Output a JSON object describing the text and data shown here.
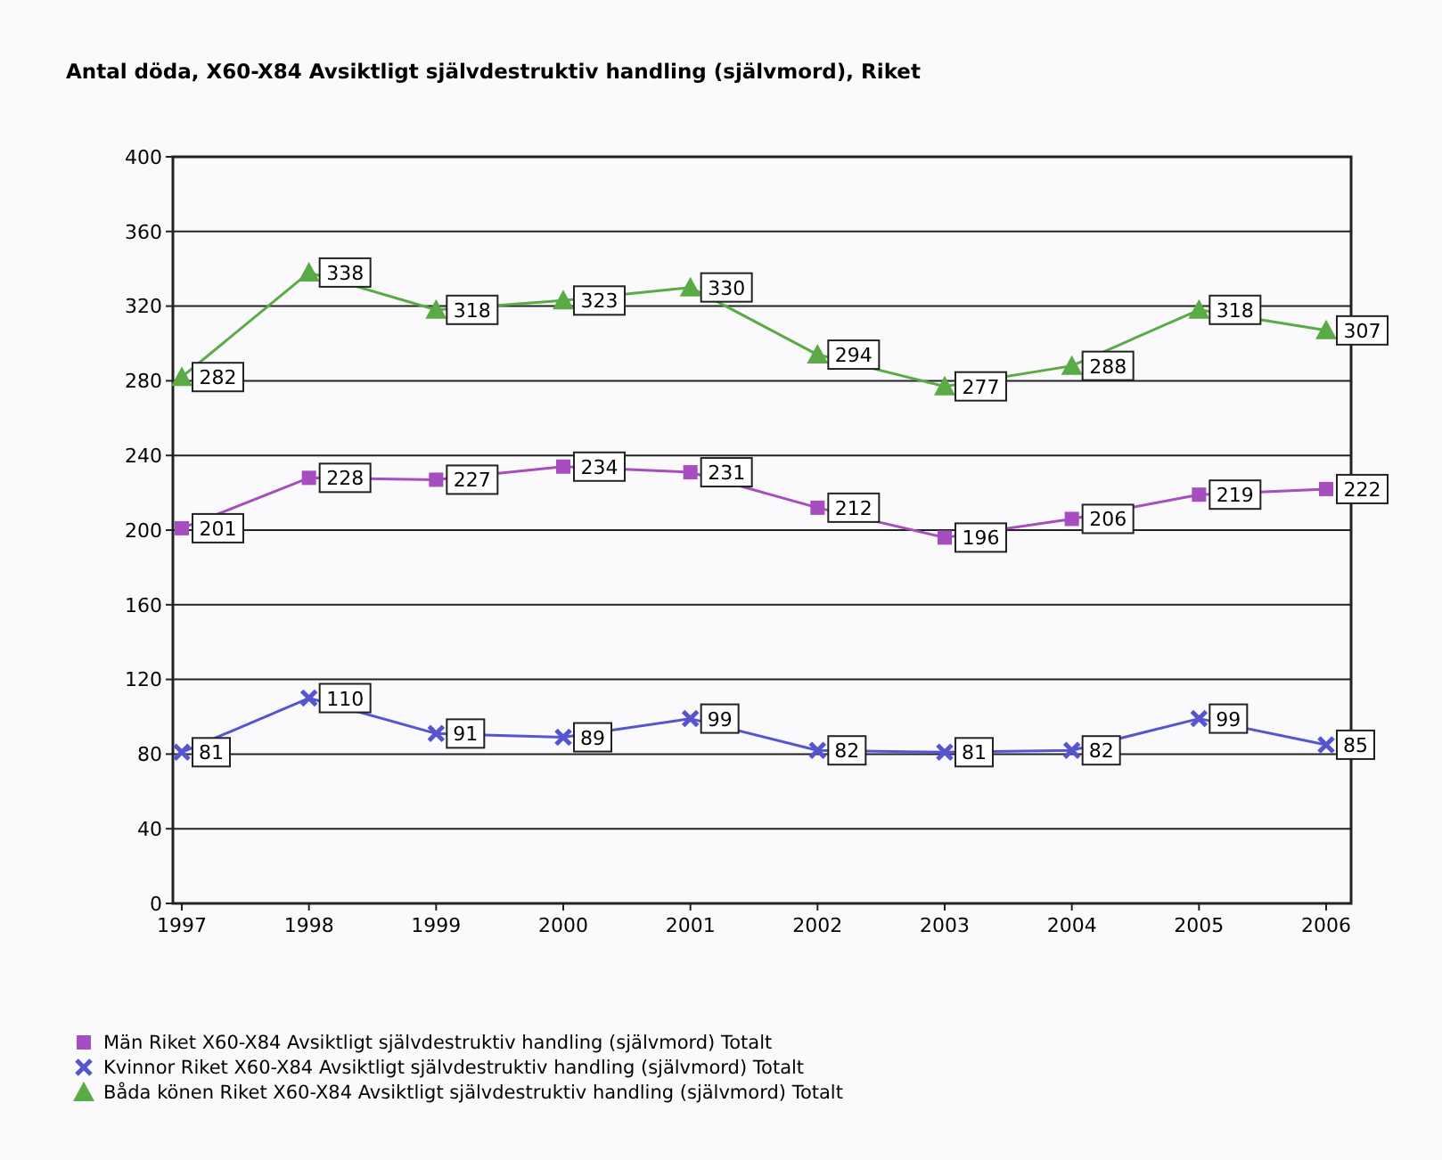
{
  "chart_data": {
    "type": "line",
    "title": "Antal döda,  X60-X84 Avsiktligt självdestruktiv handling (självmord), Riket",
    "categories": [
      "1997",
      "1998",
      "1999",
      "2000",
      "2001",
      "2002",
      "2003",
      "2004",
      "2005",
      "2006"
    ],
    "series": [
      {
        "name": "Män Riket X60-X84 Avsiktligt självdestruktiv handling (självmord) Totalt",
        "color": "#a64dbf",
        "marker": "square",
        "values": [
          201,
          228,
          227,
          234,
          231,
          212,
          196,
          206,
          219,
          222
        ]
      },
      {
        "name": "Kvinnor Riket X60-X84 Avsiktligt självdestruktiv handling (självmord) Totalt",
        "color": "#5555d0",
        "marker": "cross",
        "values": [
          81,
          110,
          91,
          89,
          99,
          82,
          81,
          82,
          99,
          85
        ]
      },
      {
        "name": "Båda könen Riket X60-X84 Avsiktligt självdestruktiv handling (självmord) Totalt",
        "color": "#5aaa46",
        "marker": "triangle",
        "values": [
          282,
          338,
          318,
          323,
          330,
          294,
          277,
          288,
          318,
          307
        ]
      }
    ],
    "ylim": [
      0,
      400
    ],
    "yticks": [
      0,
      40,
      80,
      120,
      160,
      200,
      240,
      280,
      320,
      360,
      400
    ],
    "grid": "y",
    "legend": "bottom",
    "data_labels": true
  }
}
